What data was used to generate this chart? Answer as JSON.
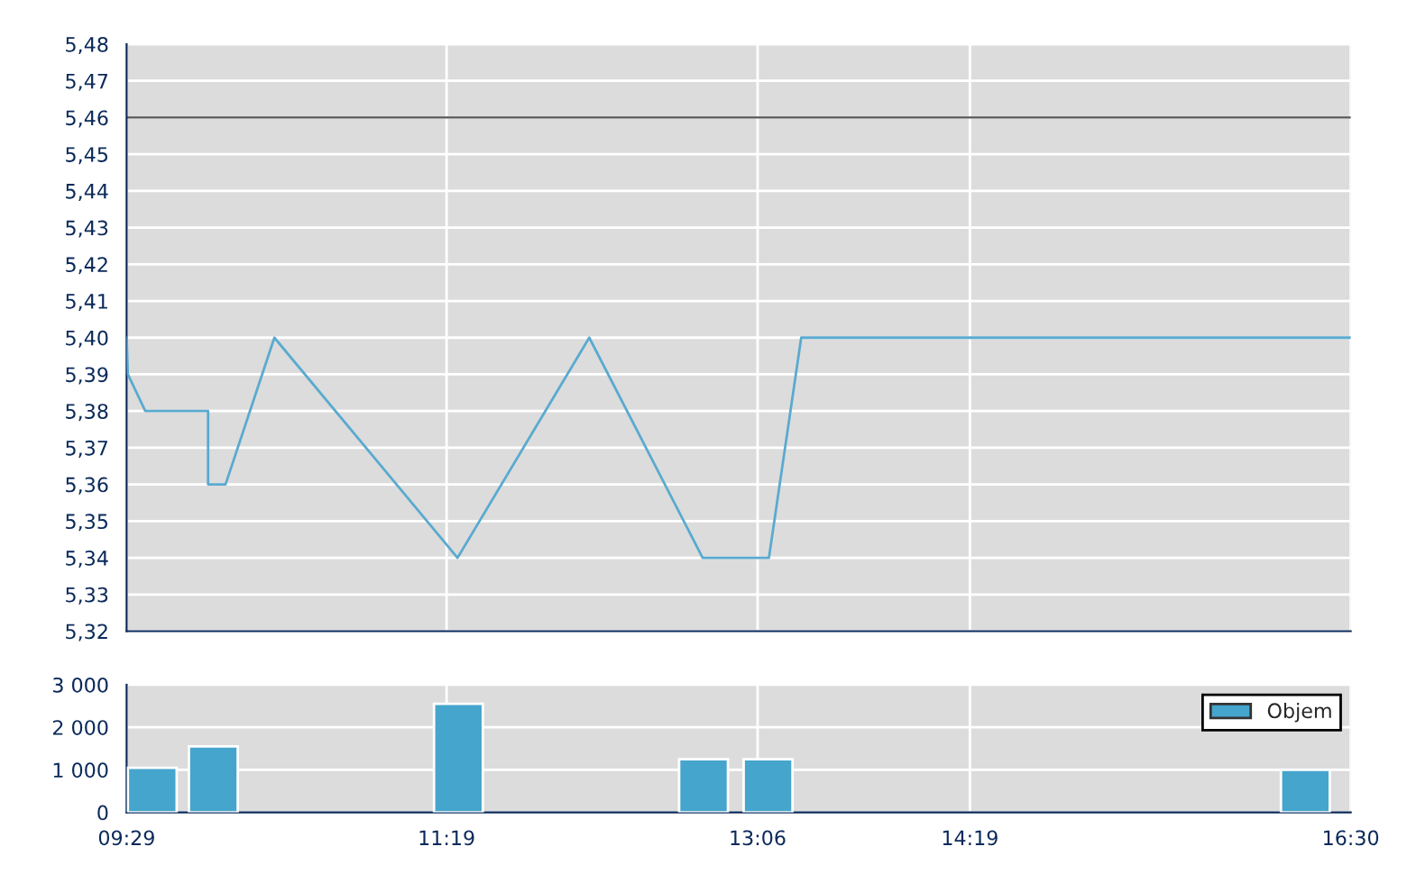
{
  "chart_data": [
    {
      "type": "line",
      "x": [
        9.483,
        9.49,
        9.59,
        9.95,
        9.95,
        10.05,
        10.33,
        11.38,
        12.135,
        12.785,
        13.165,
        13.35,
        16.5
      ],
      "series": [
        {
          "color": "#5aaacf",
          "values": [
            5.4,
            5.39,
            5.38,
            5.38,
            5.36,
            5.36,
            5.4,
            5.34,
            5.4,
            5.34,
            5.34,
            5.4,
            5.4
          ]
        }
      ],
      "xlim": [
        9.483,
        16.5
      ],
      "xticks": [
        {
          "value": 9.483,
          "label": null
        },
        {
          "value": 11.317,
          "label": null
        },
        {
          "value": 13.1,
          "label": null
        },
        {
          "value": 14.317,
          "label": null
        },
        {
          "value": 16.5,
          "label": null
        }
      ],
      "ylim": [
        5.32,
        5.48
      ],
      "yticks": [
        {
          "value": 5.32,
          "label": "5,32"
        },
        {
          "value": 5.33,
          "label": "5,33"
        },
        {
          "value": 5.34,
          "label": "5,34"
        },
        {
          "value": 5.35,
          "label": "5,35"
        },
        {
          "value": 5.36,
          "label": "5,36"
        },
        {
          "value": 5.37,
          "label": "5,37"
        },
        {
          "value": 5.38,
          "label": "5,38"
        },
        {
          "value": 5.39,
          "label": "5,39"
        },
        {
          "value": 5.4,
          "label": "5,40"
        },
        {
          "value": 5.41,
          "label": "5,41"
        },
        {
          "value": 5.42,
          "label": "5,42"
        },
        {
          "value": 5.43,
          "label": "5,43"
        },
        {
          "value": 5.44,
          "label": "5,44"
        },
        {
          "value": 5.45,
          "label": "5,45"
        },
        {
          "value": 5.46,
          "label": "5,46"
        },
        {
          "value": 5.47,
          "label": "5,47"
        },
        {
          "value": 5.48,
          "label": "5,48"
        }
      ],
      "ref_lines": [
        {
          "axis": "y",
          "value": 5.46,
          "color": "#555555"
        }
      ],
      "grid": true,
      "tick_labels": "y",
      "marker": "none",
      "line_style": "solid"
    },
    {
      "type": "bar",
      "x": [
        9.63,
        9.98,
        11.385,
        12.79,
        13.16,
        16.24
      ],
      "series": [
        {
          "name": "Objem",
          "color": "#45a5cc",
          "values": [
            1050,
            1550,
            2550,
            1250,
            1250,
            1000
          ]
        }
      ],
      "xlim": [
        9.483,
        16.5
      ],
      "xticks": [
        {
          "value": 9.483,
          "label": "09:29"
        },
        {
          "value": 11.317,
          "label": "11:19"
        },
        {
          "value": 13.1,
          "label": "13:06"
        },
        {
          "value": 14.317,
          "label": "14:19"
        },
        {
          "value": 16.5,
          "label": "16:30"
        }
      ],
      "ylim": [
        0,
        3000
      ],
      "yticks": [
        {
          "value": 0,
          "label": "0"
        },
        {
          "value": 1000,
          "label": "1 000"
        },
        {
          "value": 2000,
          "label": "2 000"
        },
        {
          "value": 3000,
          "label": "3 000"
        }
      ],
      "grid": true,
      "legend": "top right"
    }
  ]
}
